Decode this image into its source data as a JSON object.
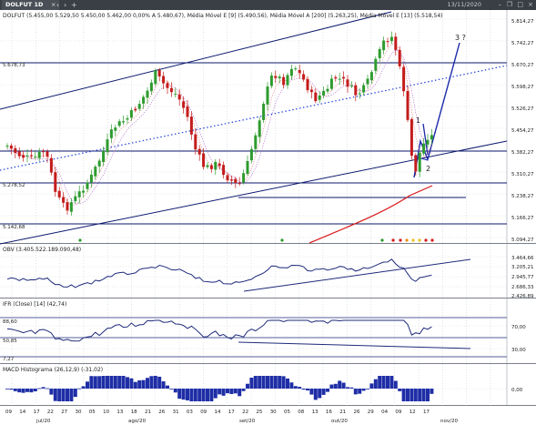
{
  "window": {
    "tab_label": "DOLFUT 1D",
    "close_glyph": "×",
    "date": "13/11/2020",
    "nav_left": "‹",
    "nav_right": "›",
    "nav_add": "+",
    "minimize_glyph": "–",
    "restore_glyph": "❐",
    "maximize_glyph": "□",
    "window_close_glyph": "×"
  },
  "colors": {
    "up": "#2e9b2e",
    "down": "#c41c1c",
    "channel": "#0d1a6e",
    "trend_dotted": "#2040d8",
    "ma200": "#d81818",
    "obv": "#1e2a7a",
    "macd": "#1f2ea6"
  },
  "price_panel": {
    "legend": "DOLFUT (5.455,00  5.529,50  5.450,00  5.462,00  0,00%  A 5.480,67), Média Móvel E [9] (5.490,56), Média Móvel A [200] (5.263,25), Média Móvel E [13] (5.518,54)",
    "y_ticks": [
      "5.814,27",
      "5.742,27",
      "5.670,27",
      "5.598,27",
      "5.526,27",
      "5.454,27",
      "5.382,27",
      "5.310,27",
      "5.238,27",
      "5.166,27",
      "5.094,27"
    ],
    "level_labels": [
      "5.678,73",
      "5.278,52",
      "5.142,68"
    ],
    "annotations": [
      "1",
      "2",
      "3 ?"
    ]
  },
  "obv_panel": {
    "legend": "OBV (3.405.522.189.090,48)",
    "y_ticks": [
      "3.464,66",
      "3.205,21",
      "2.945,77",
      "2.686,33",
      "2.426,89"
    ]
  },
  "ifr_panel": {
    "legend": "IFR (Close) [14] (42,74)",
    "y_ticks": [
      "70,00",
      "30,00"
    ],
    "level_labels": [
      "88,60",
      "50,85",
      "7,27"
    ]
  },
  "macd_panel": {
    "legend": "MACD Histograma (26,12,9) (-31,02)",
    "y_ticks": [
      "0,00"
    ]
  },
  "time_axis": {
    "day_labels": [
      "09",
      "14",
      "17",
      "22",
      "27",
      "30",
      "05",
      "10",
      "13",
      "18",
      "21",
      "26",
      "31",
      "03",
      "09",
      "14",
      "17",
      "22",
      "25",
      "30",
      "05",
      "08",
      "13",
      "16",
      "21",
      "26",
      "29",
      "04",
      "09",
      "12",
      "17"
    ],
    "month_labels": [
      "jul/20",
      "ago/20",
      "set/20",
      "out/20",
      "nov/20"
    ]
  }
}
